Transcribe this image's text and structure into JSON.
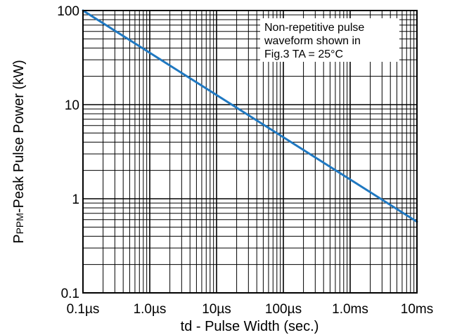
{
  "chart_data": {
    "type": "line",
    "title": "",
    "xlabel": "td - Pulse Width (sec.)",
    "ylabel_main": "P",
    "ylabel_sub": "PPM",
    "ylabel_rest": "-Peak Pulse Power (kW)",
    "x_scale": "log",
    "y_scale": "log",
    "xlim": [
      1e-07,
      0.01
    ],
    "ylim": [
      0.1,
      100
    ],
    "x_ticks": [
      {
        "value": 1e-07,
        "label": "0.1µs"
      },
      {
        "value": 1e-06,
        "label": "1.0µs"
      },
      {
        "value": 1e-05,
        "label": "10µs"
      },
      {
        "value": 0.0001,
        "label": "100µs"
      },
      {
        "value": 0.001,
        "label": "1.0ms"
      },
      {
        "value": 0.01,
        "label": "10ms"
      }
    ],
    "y_ticks": [
      {
        "value": 0.1,
        "label": "0.1"
      },
      {
        "value": 1,
        "label": "1"
      },
      {
        "value": 10,
        "label": "10"
      },
      {
        "value": 100,
        "label": "100"
      }
    ],
    "grid": true,
    "annotation": [
      "Non-repetitive pulse",
      "waveform shown in",
      "Fig.3 TA = 25°C"
    ],
    "series": [
      {
        "color": "#1f78c1",
        "x": [
          1e-07,
          0.01
        ],
        "y": [
          100,
          0.57
        ]
      }
    ]
  }
}
